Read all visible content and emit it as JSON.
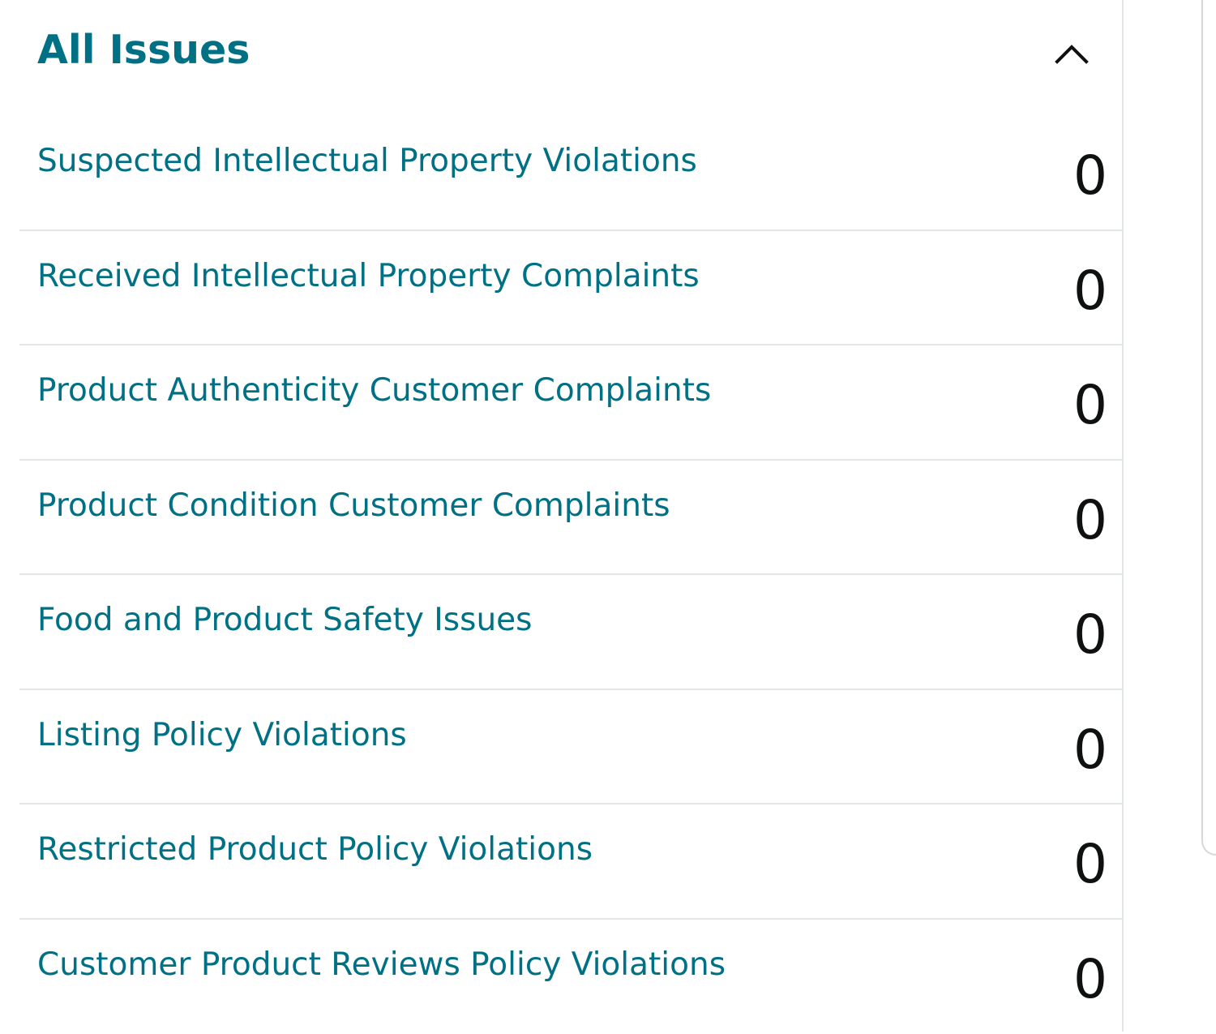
{
  "header": {
    "title": "All Issues",
    "collapse_icon": "chevron-up-icon"
  },
  "colors": {
    "link": "#007185",
    "text": "#0f1111",
    "divider": "#e3e6e6"
  },
  "issues": [
    {
      "label": "Suspected Intellectual Property Violations",
      "count": "0"
    },
    {
      "label": "Received Intellectual Property Complaints",
      "count": "0"
    },
    {
      "label": "Product Authenticity Customer Complaints",
      "count": "0"
    },
    {
      "label": "Product Condition Customer Complaints",
      "count": "0"
    },
    {
      "label": "Food and Product Safety Issues",
      "count": "0"
    },
    {
      "label": "Listing Policy Violations",
      "count": "0"
    },
    {
      "label": "Restricted Product Policy Violations",
      "count": "0"
    },
    {
      "label": "Customer Product Reviews Policy Violations",
      "count": "0"
    }
  ]
}
